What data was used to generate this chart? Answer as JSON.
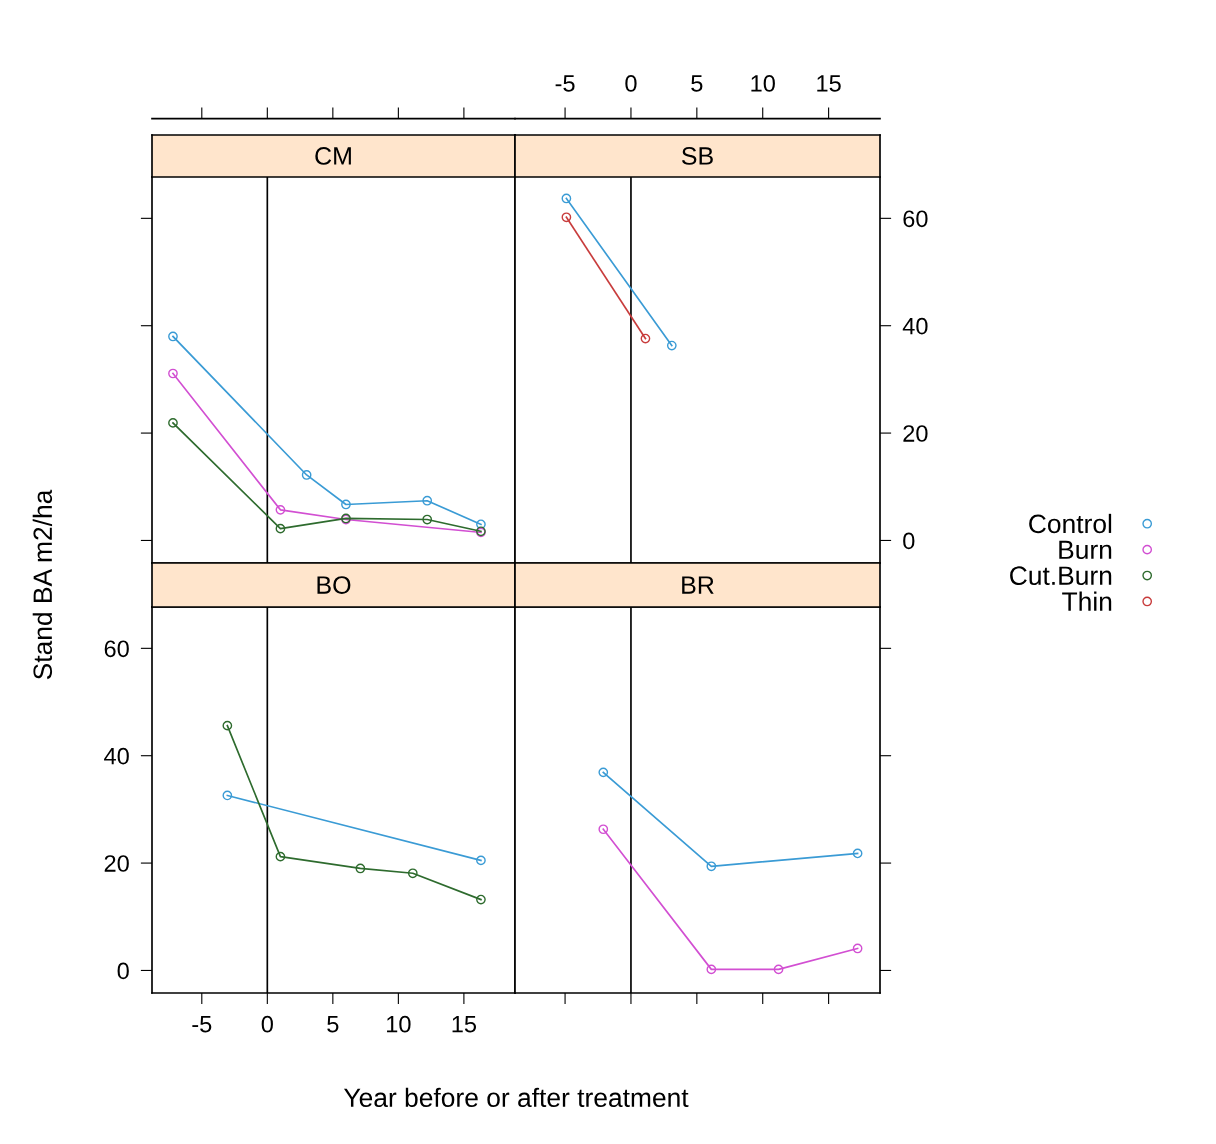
{
  "chart_data": [
    {
      "type": "line",
      "title": "CM",
      "xlim": [
        -8.8,
        18.9
      ],
      "ylim": [
        -4.2,
        67.7
      ],
      "xticks": [
        -5,
        0,
        5,
        10,
        15
      ],
      "yticks": [
        0,
        20,
        40,
        60
      ],
      "tick_labels": false,
      "marker": "circle",
      "grid": false,
      "legend": "right",
      "ref_lines": [
        {
          "axis": "x",
          "value": 0,
          "color": "#000000"
        }
      ],
      "series": [
        {
          "name": "Control",
          "color": "#3a9bd5",
          "x": [
            -7.2,
            3,
            6,
            12.2,
            16.3
          ],
          "values": [
            38,
            12.2,
            6.7,
            7.4,
            3.0
          ]
        },
        {
          "name": "Burn",
          "color": "#d24fd2",
          "x": [
            -7.2,
            1,
            6,
            16.3
          ],
          "values": [
            31.1,
            5.7,
            3.9,
            1.5
          ]
        },
        {
          "name": "Cut.Burn",
          "color": "#2e6b2e",
          "x": [
            -7.2,
            1,
            6,
            12.2,
            16.3
          ],
          "values": [
            21.9,
            2.2,
            4.1,
            3.9,
            1.7
          ]
        }
      ]
    },
    {
      "type": "line",
      "title": "SB",
      "xlim": [
        -8.8,
        18.9
      ],
      "ylim": [
        -4.2,
        67.7
      ],
      "xticks": [
        -5,
        0,
        5,
        10,
        15
      ],
      "yticks": [
        0,
        20,
        40,
        60
      ],
      "marker": "circle",
      "grid": false,
      "ref_lines": [
        {
          "axis": "x",
          "value": 0,
          "color": "#000000"
        }
      ],
      "series": [
        {
          "color": "#3a9bd5",
          "x": [
            -4.9,
            3.1
          ],
          "values": [
            63.7,
            36.3
          ]
        },
        {
          "name": "Thin",
          "color": "#c83c3c",
          "x": [
            -4.9,
            1.1
          ],
          "values": [
            60.2,
            37.6
          ]
        }
      ]
    },
    {
      "type": "line",
      "title": "BO",
      "xlabel": "Year before or after treatment",
      "ylabel": "Stand BA m2/ha",
      "xlim": [
        -8.8,
        18.9
      ],
      "ylim": [
        -4.2,
        67.7
      ],
      "xticks": [
        -5,
        0,
        5,
        10,
        15
      ],
      "yticks": [
        0,
        20,
        40,
        60
      ],
      "marker": "circle",
      "grid": false,
      "ref_lines": [
        {
          "axis": "x",
          "value": 0,
          "color": "#000000"
        }
      ],
      "series": [
        {
          "color": "#3a9bd5",
          "x": [
            -3.05,
            16.3
          ],
          "values": [
            32.6,
            20.5
          ]
        },
        {
          "color": "#2e6b2e",
          "x": [
            -3.05,
            1,
            7.1,
            11.1,
            16.3
          ],
          "values": [
            45.6,
            21.2,
            19.0,
            18.1,
            13.2
          ]
        }
      ]
    },
    {
      "type": "line",
      "title": "BR",
      "xlim": [
        -8.8,
        18.9
      ],
      "ylim": [
        -4.2,
        67.7
      ],
      "xticks": [
        -5,
        0,
        5,
        10,
        15
      ],
      "yticks": [
        0,
        20,
        40,
        60
      ],
      "tick_labels": false,
      "marker": "circle",
      "grid": false,
      "ref_lines": [
        {
          "axis": "x",
          "value": 0,
          "color": "#000000"
        }
      ],
      "series": [
        {
          "color": "#3a9bd5",
          "x": [
            -2.1,
            6.1,
            17.2
          ],
          "values": [
            36.9,
            19.4,
            21.8
          ]
        },
        {
          "color": "#d24fd2",
          "x": [
            -2.1,
            6.1,
            11.2,
            17.2
          ],
          "values": [
            26.3,
            0.2,
            0.2,
            4.1
          ]
        }
      ]
    }
  ]
}
